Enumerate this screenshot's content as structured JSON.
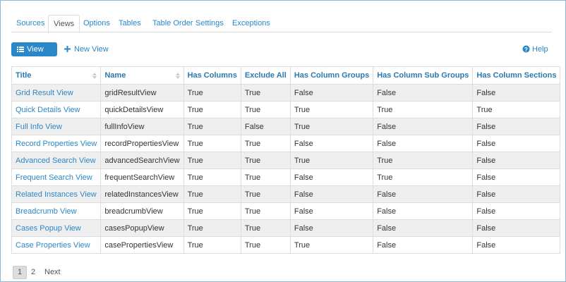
{
  "tabs": [
    "Sources",
    "Views",
    "Options",
    "Tables",
    "Table Order",
    "Settings",
    "Exceptions"
  ],
  "toolbar": {
    "view_list": "View List",
    "new_view": "New View",
    "help": "Help"
  },
  "table": {
    "headers": [
      "Title",
      "Name",
      "Has Columns",
      "Exclude All",
      "Has Column Groups",
      "Has Column Sub Groups",
      "Has Column Sections"
    ],
    "rows": [
      [
        "Grid Result View",
        "gridResultView",
        "True",
        "True",
        "False",
        "False",
        "False"
      ],
      [
        "Quick Details View",
        "quickDetailsView",
        "True",
        "True",
        "True",
        "True",
        "True"
      ],
      [
        "Full Info View",
        "fullInfoView",
        "True",
        "False",
        "True",
        "False",
        "False"
      ],
      [
        "Record Properties View",
        "recordPropertiesView",
        "True",
        "True",
        "False",
        "False",
        "False"
      ],
      [
        "Advanced Search View",
        "advancedSearchView",
        "True",
        "True",
        "True",
        "True",
        "False"
      ],
      [
        "Frequent Search View",
        "frequentSearchView",
        "True",
        "True",
        "False",
        "True",
        "False"
      ],
      [
        "Related Instances View",
        "relatedInstancesView",
        "True",
        "True",
        "False",
        "False",
        "False"
      ],
      [
        "Breadcrumb View",
        "breadcrumbView",
        "True",
        "True",
        "False",
        "False",
        "False"
      ],
      [
        "Cases Popup View",
        "casesPopupView",
        "True",
        "True",
        "False",
        "False",
        "False"
      ],
      [
        "Case Properties View",
        "casePropertiesView",
        "True",
        "True",
        "True",
        "False",
        "False"
      ]
    ]
  },
  "pagination": {
    "pages": [
      "1",
      "2"
    ],
    "next": "Next"
  }
}
